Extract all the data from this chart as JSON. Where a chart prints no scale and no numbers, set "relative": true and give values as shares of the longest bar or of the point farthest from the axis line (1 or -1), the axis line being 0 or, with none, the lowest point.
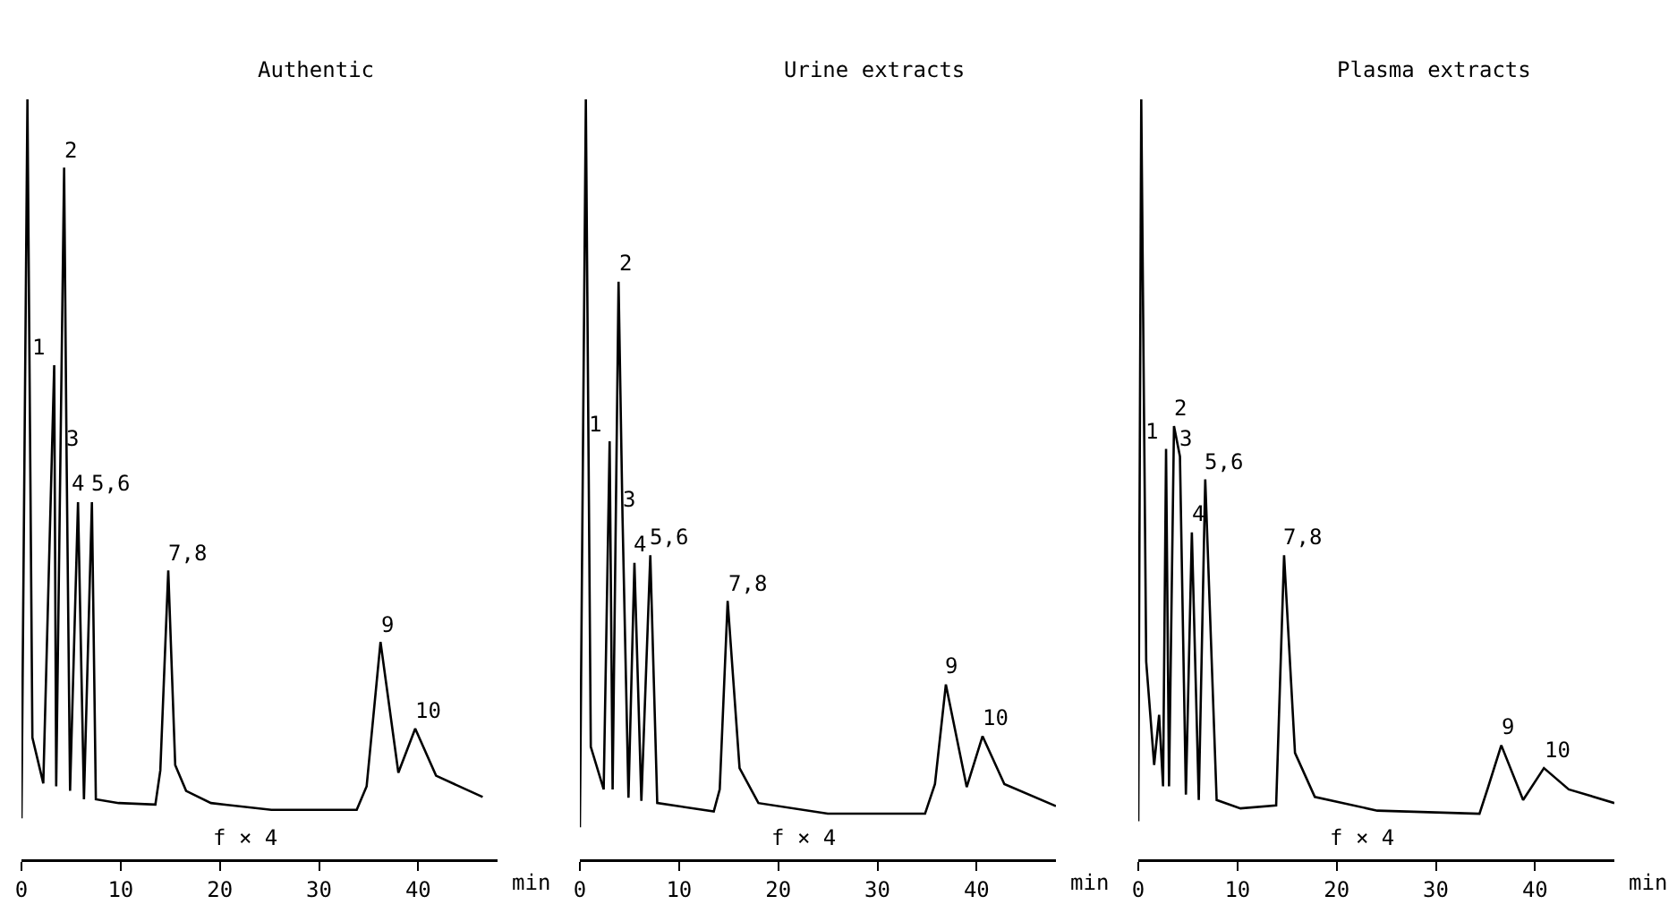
{
  "chart_data": [
    {
      "type": "line",
      "title": "Authentic",
      "xlabel": "min",
      "relative": true,
      "xlim": [
        0,
        48
      ],
      "xticks": [
        0,
        10,
        20,
        30,
        40
      ],
      "grid": false,
      "marker": "none",
      "line_style": "solid",
      "series": [
        {
          "color": "#000000",
          "x": [
            0,
            0.6,
            1.1,
            2.2,
            3.3,
            3.5,
            4.3,
            4.55,
            4.9,
            5.7,
            6.3,
            7.1,
            7.5,
            9.8,
            13.5,
            14.0,
            14.8,
            15.5,
            16.6,
            19.1,
            25.2,
            33.8,
            34.8,
            36.2,
            38.0,
            39.7,
            41.8,
            46.5
          ],
          "values": [
            0.054,
            1.0,
            0.16,
            0.1,
            0.65,
            0.096,
            0.91,
            0.53,
            0.09,
            0.47,
            0.079,
            0.47,
            0.079,
            0.074,
            0.072,
            0.117,
            0.38,
            0.124,
            0.09,
            0.074,
            0.065,
            0.065,
            0.096,
            0.286,
            0.114,
            0.172,
            0.11,
            0.082
          ]
        }
      ],
      "annotations": [
        {
          "text": "1",
          "x": 3.3,
          "y": 0.65
        },
        {
          "text": "2",
          "x": 4.3,
          "y": 0.91
        },
        {
          "text": "3",
          "x": 4.55,
          "y": 0.53
        },
        {
          "text": "4",
          "x": 5.7,
          "y": 0.47
        },
        {
          "text": "5,6",
          "x": 7.1,
          "y": 0.47
        },
        {
          "text": "7,8",
          "x": 14.8,
          "y": 0.38
        },
        {
          "text": "9",
          "x": 36.2,
          "y": 0.286
        },
        {
          "text": "10",
          "x": 39.7,
          "y": 0.172
        },
        "f × 4"
      ]
    },
    {
      "type": "line",
      "title": "Urine extracts",
      "xlabel": "min",
      "relative": true,
      "xlim": [
        0,
        48
      ],
      "xticks": [
        0,
        10,
        20,
        30,
        40
      ],
      "grid": false,
      "marker": "none",
      "line_style": "solid",
      "series": [
        {
          "color": "#000000",
          "x": [
            0,
            0.6,
            1.1,
            2.4,
            3.0,
            3.3,
            3.9,
            4.3,
            4.9,
            5.5,
            6.2,
            7.1,
            7.8,
            13.5,
            14.1,
            14.9,
            16.1,
            18.0,
            25.0,
            34.8,
            35.8,
            36.9,
            39.0,
            40.6,
            42.8,
            48.0
          ],
          "values": [
            0.042,
            1.0,
            0.148,
            0.092,
            0.55,
            0.092,
            0.76,
            0.45,
            0.081,
            0.39,
            0.077,
            0.4,
            0.074,
            0.063,
            0.092,
            0.34,
            0.12,
            0.074,
            0.06,
            0.06,
            0.099,
            0.23,
            0.095,
            0.162,
            0.099,
            0.07
          ]
        }
      ],
      "annotations": [
        {
          "text": "1",
          "x": 3.0,
          "y": 0.55
        },
        {
          "text": "2",
          "x": 3.9,
          "y": 0.76
        },
        {
          "text": "3",
          "x": 4.3,
          "y": 0.45
        },
        {
          "text": "4",
          "x": 5.5,
          "y": 0.39
        },
        {
          "text": "5,6",
          "x": 7.1,
          "y": 0.4
        },
        {
          "text": "7,8",
          "x": 14.9,
          "y": 0.34
        },
        {
          "text": "9",
          "x": 36.9,
          "y": 0.23
        },
        {
          "text": "10",
          "x": 40.6,
          "y": 0.162
        },
        "f × 4"
      ]
    },
    {
      "type": "line",
      "title": "Plasma extracts",
      "xlabel": "min",
      "relative": true,
      "xlim": [
        0,
        48
      ],
      "xticks": [
        0,
        10,
        20,
        30,
        40
      ],
      "grid": false,
      "marker": "none",
      "line_style": "solid",
      "series": [
        {
          "color": "#000000",
          "x": [
            0,
            0.3,
            0.8,
            1.6,
            2.1,
            2.5,
            2.8,
            3.1,
            3.6,
            4.2,
            4.8,
            5.4,
            6.1,
            6.75,
            7.9,
            10.3,
            13.9,
            14.7,
            15.8,
            17.8,
            24.1,
            34.4,
            35.3,
            36.6,
            38.8,
            40.9,
            43.4,
            48.0
          ],
          "values": [
            0.05,
            1.0,
            0.26,
            0.124,
            0.19,
            0.096,
            0.54,
            0.096,
            0.57,
            0.53,
            0.085,
            0.43,
            0.078,
            0.5,
            0.078,
            0.067,
            0.071,
            0.4,
            0.14,
            0.082,
            0.064,
            0.06,
            0.096,
            0.15,
            0.078,
            0.12,
            0.092,
            0.074
          ]
        }
      ],
      "annotations": [
        {
          "text": "1",
          "x": 2.8,
          "y": 0.54
        },
        {
          "text": "2",
          "x": 3.6,
          "y": 0.57
        },
        {
          "text": "3",
          "x": 4.2,
          "y": 0.53
        },
        {
          "text": "4",
          "x": 5.4,
          "y": 0.43
        },
        {
          "text": "5,6",
          "x": 6.75,
          "y": 0.5
        },
        {
          "text": "7,8",
          "x": 14.7,
          "y": 0.4
        },
        {
          "text": "9",
          "x": 36.6,
          "y": 0.15
        },
        {
          "text": "10",
          "x": 40.9,
          "y": 0.12
        },
        "f × 4"
      ]
    }
  ]
}
